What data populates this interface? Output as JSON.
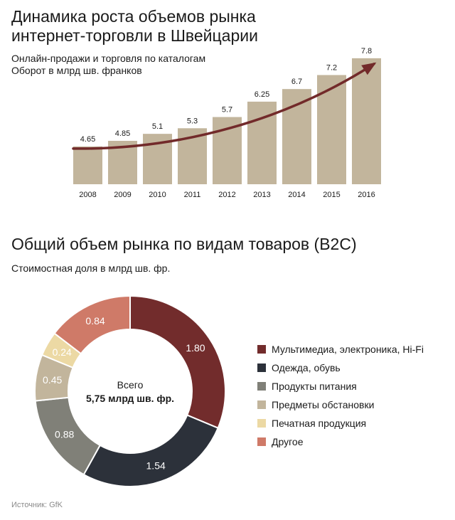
{
  "chart_data": [
    {
      "type": "bar",
      "title_lines": [
        "Динамика роста объемов рынка",
        "интернет-торговли в Швейцарии"
      ],
      "subtitle_lines": [
        "Онлайн-продажи и торговля по каталогам",
        "Оборот в млрд шв. франков"
      ],
      "categories": [
        "2008",
        "2009",
        "2010",
        "2011",
        "2012",
        "2013",
        "2014",
        "2015",
        "2016"
      ],
      "values": [
        4.65,
        4.85,
        5.1,
        5.3,
        5.7,
        6.25,
        6.7,
        7.2,
        7.8
      ],
      "value_labels": [
        "4.65",
        "4.85",
        "5.1",
        "5.3",
        "5.7",
        "6.25",
        "6.7",
        "7.2",
        "7.8"
      ],
      "bar_color": "#c2b59c",
      "trend_arrow_color": "#722a2a",
      "ylim": [
        3.3,
        8.0
      ],
      "grid": false
    },
    {
      "type": "pie",
      "title": "Общий объем рынка по видам товаров (B2C)",
      "subtitle": "Стоимостная доля в млрд шв. фр.",
      "center_label_line1": "Всего",
      "center_label_line2": "5,75 млрд шв. фр.",
      "slices": [
        {
          "label": "Мультимедиа, электроника, Hi-Fi",
          "value": 1.8,
          "value_label": "1.80",
          "color": "#722c2c"
        },
        {
          "label": "Одежда, обувь",
          "value": 1.54,
          "value_label": "1.54",
          "color": "#2c313a"
        },
        {
          "label": "Продукты питания",
          "value": 0.88,
          "value_label": "0.88",
          "color": "#808078"
        },
        {
          "label": "Предметы обстановки",
          "value": 0.45,
          "value_label": "0.45",
          "color": "#c2b59c"
        },
        {
          "label": "Печатная продукция",
          "value": 0.24,
          "value_label": "0.24",
          "color": "#ecd9a4"
        },
        {
          "label": "Другое",
          "value": 0.84,
          "value_label": "0.84",
          "color": "#cf7a68"
        }
      ],
      "legend_position": "right"
    }
  ],
  "source": "Источник: GfK"
}
